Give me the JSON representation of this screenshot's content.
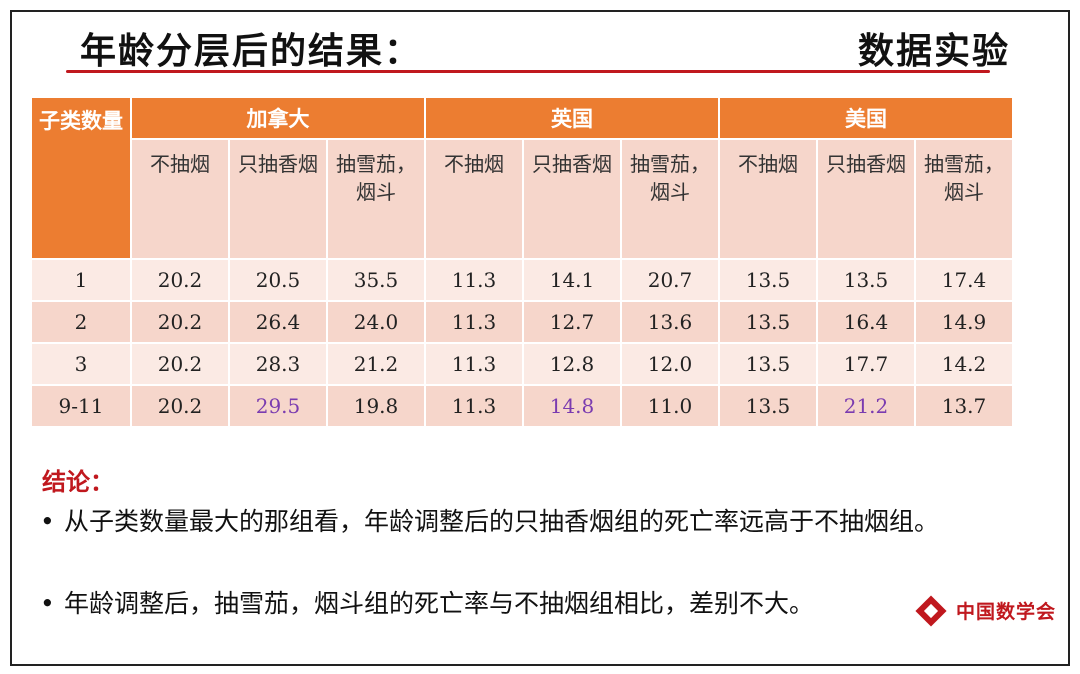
{
  "slide": {
    "title": "年龄分层后的结果：",
    "section": "数据实验"
  },
  "table": {
    "corner_header": "子类数量",
    "countries": [
      "加拿大",
      "英国",
      "美国"
    ],
    "sub_headers": [
      "不抽烟",
      "只抽香烟",
      "抽雪茄，烟斗"
    ],
    "rows": [
      {
        "label": "1",
        "values": [
          "20.2",
          "20.5",
          "35.5",
          "11.3",
          "14.1",
          "20.7",
          "13.5",
          "13.5",
          "17.4"
        ]
      },
      {
        "label": "2",
        "values": [
          "20.2",
          "26.4",
          "24.0",
          "11.3",
          "12.7",
          "13.6",
          "13.5",
          "16.4",
          "14.9"
        ]
      },
      {
        "label": "3",
        "values": [
          "20.2",
          "28.3",
          "21.2",
          "11.3",
          "12.8",
          "12.0",
          "13.5",
          "17.7",
          "14.2"
        ]
      },
      {
        "label": "9-11",
        "values": [
          "20.2",
          "29.5",
          "19.8",
          "11.3",
          "14.8",
          "11.0",
          "13.5",
          "21.2",
          "13.7"
        ]
      }
    ],
    "highlight_color": "#7a3bb0"
  },
  "conclusion": {
    "heading": "结论：",
    "bullets": [
      "从子类数量最大的那组看，年龄调整后的只抽香烟组的死亡率远高于不抽烟组。",
      "年龄调整后，抽雪茄，烟斗组的死亡率与不抽烟组相比，差别不大。"
    ]
  },
  "logo": {
    "text": "中国数学会"
  },
  "colors": {
    "accent": "#ec7d31",
    "rule": "#c0181e"
  }
}
